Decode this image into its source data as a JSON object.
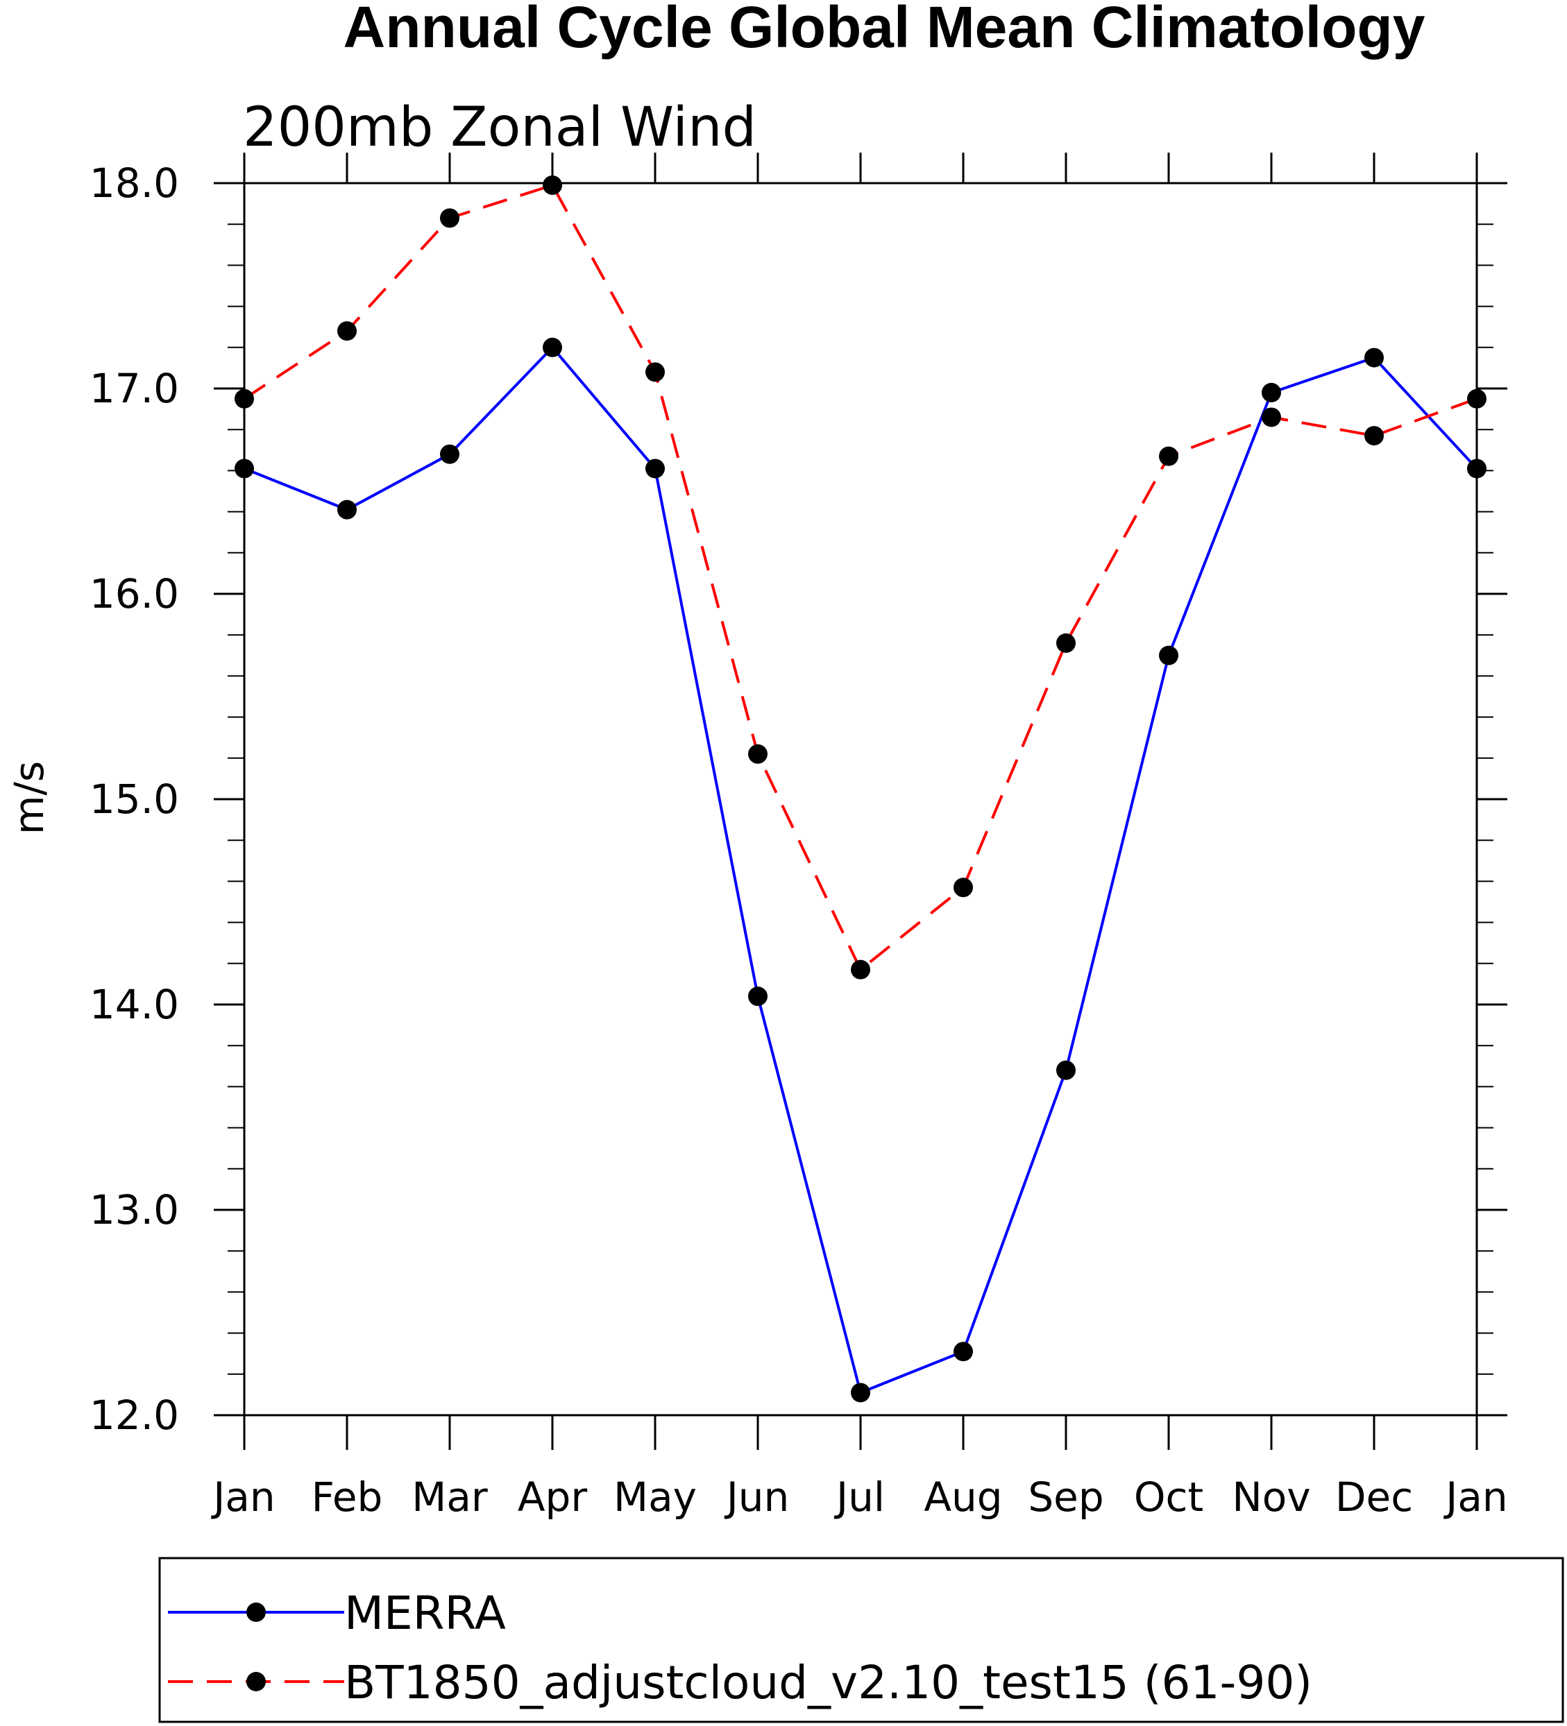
{
  "chart_data": {
    "type": "line",
    "title": "Annual Cycle Global Mean Climatology",
    "subtitle": "200mb Zonal Wind",
    "xlabel": "",
    "ylabel": "m/s",
    "categories": [
      "Jan",
      "Feb",
      "Mar",
      "Apr",
      "May",
      "Jun",
      "Jul",
      "Aug",
      "Sep",
      "Oct",
      "Nov",
      "Dec",
      "Jan"
    ],
    "ylim": [
      12.0,
      18.0
    ],
    "yticks": [
      "12.0",
      "13.0",
      "14.0",
      "15.0",
      "16.0",
      "17.0",
      "18.0"
    ],
    "grid": false,
    "legend_position": "bottom",
    "series": [
      {
        "name": "MERRA",
        "color": "#0000ff",
        "dash": "solid",
        "marker": "circle",
        "values": [
          16.61,
          16.41,
          16.68,
          17.2,
          16.61,
          14.04,
          12.11,
          12.31,
          13.68,
          15.7,
          16.98,
          17.15,
          16.61
        ]
      },
      {
        "name": "BT1850_adjustcloud_v2.10_test15 (61-90)",
        "color": "#ff0000",
        "dash": "dashed",
        "marker": "circle",
        "values": [
          16.95,
          17.28,
          17.83,
          17.99,
          17.08,
          15.22,
          14.17,
          14.57,
          15.76,
          16.67,
          16.86,
          16.77,
          16.95
        ]
      }
    ]
  }
}
